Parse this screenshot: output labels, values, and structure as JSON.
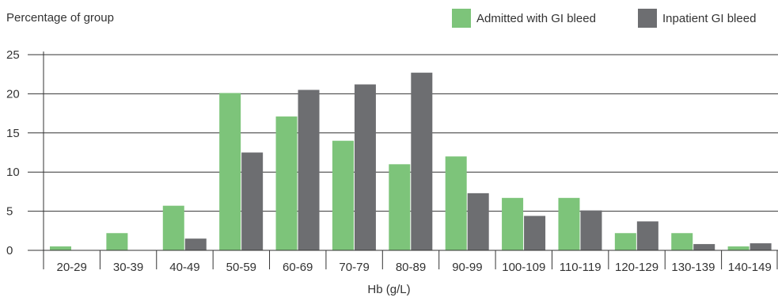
{
  "chart_data": {
    "type": "bar",
    "ylabel": "Percentage of group",
    "xlabel": "Hb (g/L)",
    "ylim": [
      0,
      25
    ],
    "yticks": [
      0,
      5,
      10,
      15,
      20,
      25
    ],
    "grid": true,
    "legend_position": "top-right",
    "categories": [
      "20-29",
      "30-39",
      "40-49",
      "50-59",
      "60-69",
      "70-79",
      "80-89",
      "90-99",
      "100-109",
      "110-119",
      "120-129",
      "130-139",
      "140-149"
    ],
    "series": [
      {
        "name": "Admitted with GI bleed",
        "color": "#7dc47a",
        "values": [
          0.5,
          2.2,
          5.7,
          20.1,
          17.1,
          14.0,
          11.0,
          12.0,
          6.7,
          6.7,
          2.2,
          2.2,
          0.5
        ]
      },
      {
        "name": "Inpatient GI bleed",
        "color": "#6d6e71",
        "values": [
          0,
          0,
          1.5,
          12.5,
          20.5,
          21.2,
          22.7,
          7.3,
          4.4,
          5.1,
          3.7,
          0.8,
          0.9
        ]
      }
    ]
  }
}
